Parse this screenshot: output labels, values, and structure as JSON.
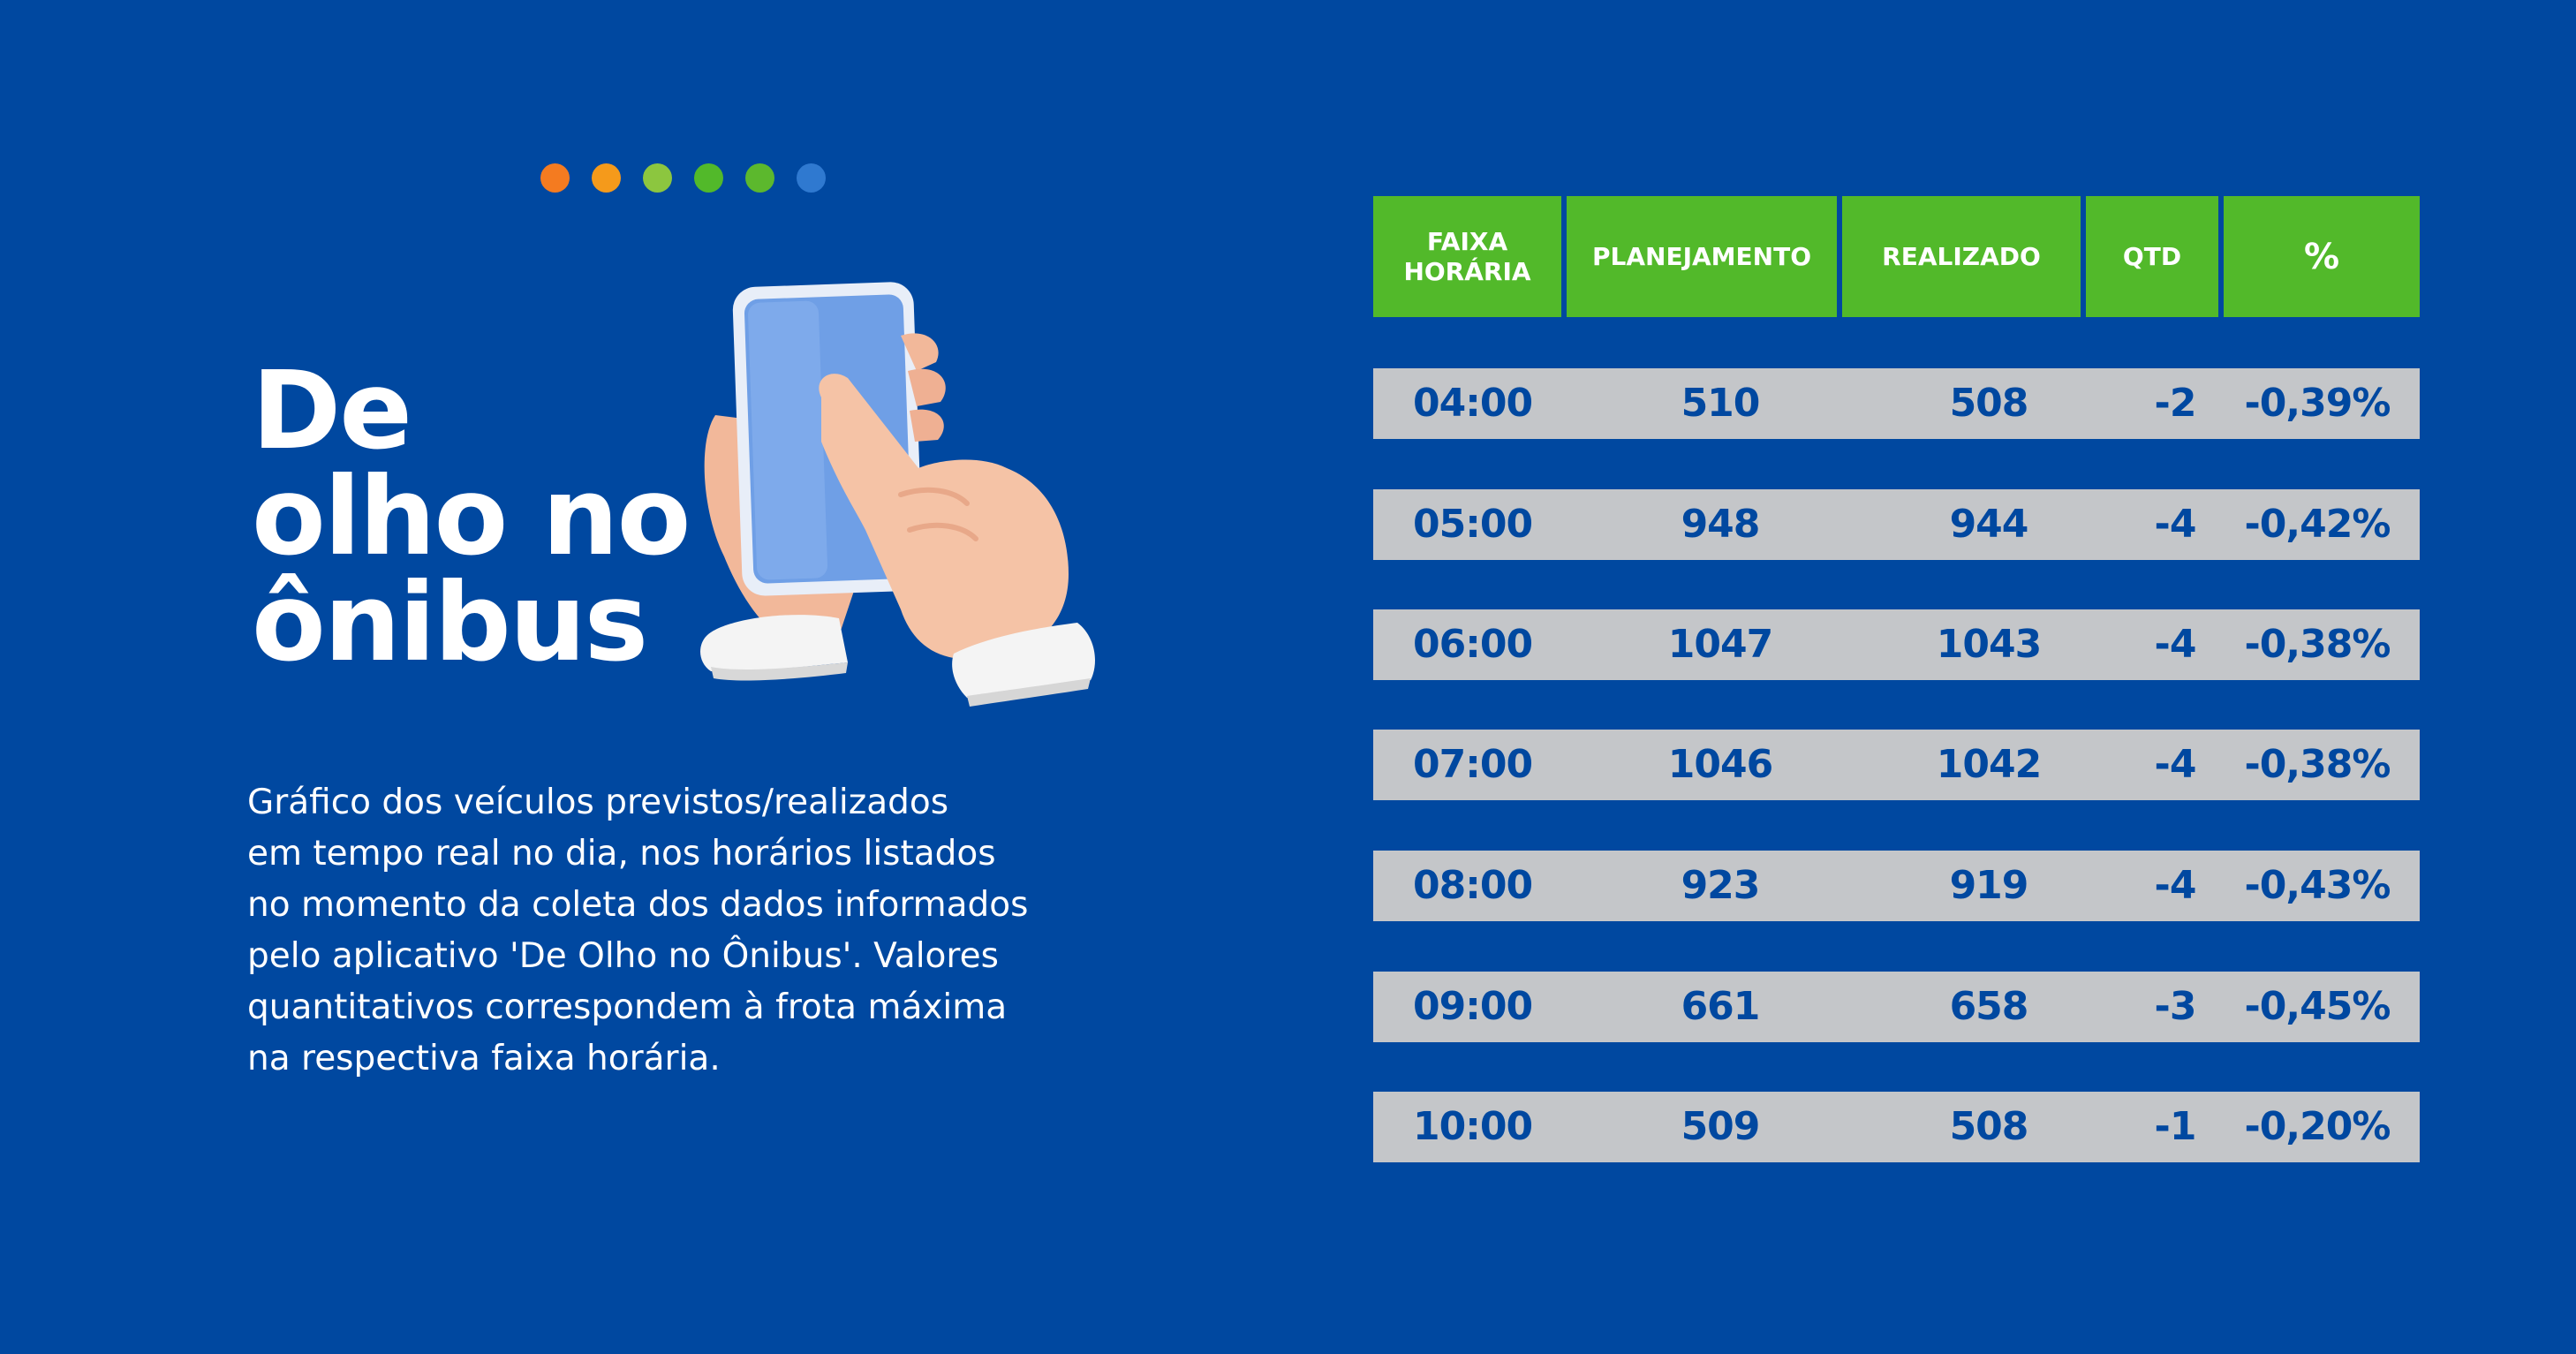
{
  "colors": {
    "background": "#0048a0",
    "header_green": "#52b92a",
    "row_gray": "#c4c6c9",
    "row_text": "#0048a0",
    "dots": [
      "#f47b20",
      "#f59a1b",
      "#8cc63f",
      "#52b92a",
      "#5cb82d",
      "#2f79d0"
    ]
  },
  "title": {
    "line1": "De",
    "line2": "olho no",
    "line3": "ônibus"
  },
  "description": {
    "lines": [
      "Gráfico dos veículos previstos/realizados",
      "em tempo real no dia, nos horários  listados",
      "no momento da coleta dos dados informados",
      "pelo aplicativo  'De Olho no Ônibus'. Valores",
      "quantitativos correspondem à frota máxima",
      "na respectiva faixa horária."
    ]
  },
  "illustration": {
    "icon": "hand-tapping-smartphone-icon"
  },
  "table": {
    "headers": {
      "faixa_line1": "FAIXA",
      "faixa_line2": "HORÁRIA",
      "planejamento": "PLANEJAMENTO",
      "realizado": "REALIZADO",
      "qtd": "QTD",
      "pct": "%"
    },
    "rows": [
      {
        "time": "04:00",
        "plan": "510",
        "real": "508",
        "qtd": "-2",
        "pct": "-0,39%"
      },
      {
        "time": "05:00",
        "plan": "948",
        "real": "944",
        "qtd": "-4",
        "pct": "-0,42%"
      },
      {
        "time": "06:00",
        "plan": "1047",
        "real": "1043",
        "qtd": "-4",
        "pct": "-0,38%"
      },
      {
        "time": "07:00",
        "plan": "1046",
        "real": "1042",
        "qtd": "-4",
        "pct": "-0,38%"
      },
      {
        "time": "08:00",
        "plan": "923",
        "real": "919",
        "qtd": "-4",
        "pct": "-0,43%"
      },
      {
        "time": "09:00",
        "plan": "661",
        "real": "658",
        "qtd": "-3",
        "pct": "-0,45%"
      },
      {
        "time": "10:00",
        "plan": "509",
        "real": "508",
        "qtd": "-1",
        "pct": "-0,20%"
      }
    ]
  }
}
